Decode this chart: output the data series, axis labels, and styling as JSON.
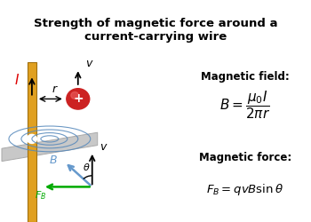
{
  "title": "Strength of magnetic force around a\ncurrent-carrying wire",
  "title_bg": "#cfe4f0",
  "main_bg": "#ffffff",
  "wire_color": "#e0a020",
  "wire_edge_color": "#a07010",
  "current_color": "#dd0000",
  "box1_bg": "#e4e4e4",
  "box2_bg": "#e4e4e4",
  "field_label": "Magnetic field:",
  "force_label": "Magnetic force:",
  "B_color": "#6699cc",
  "FB_color": "#00aa00",
  "particle_color": "#cc2222",
  "ellipse_color": "#5588bb",
  "plate_color": "#c8c8c8",
  "plate_edge": "#aaaaaa"
}
